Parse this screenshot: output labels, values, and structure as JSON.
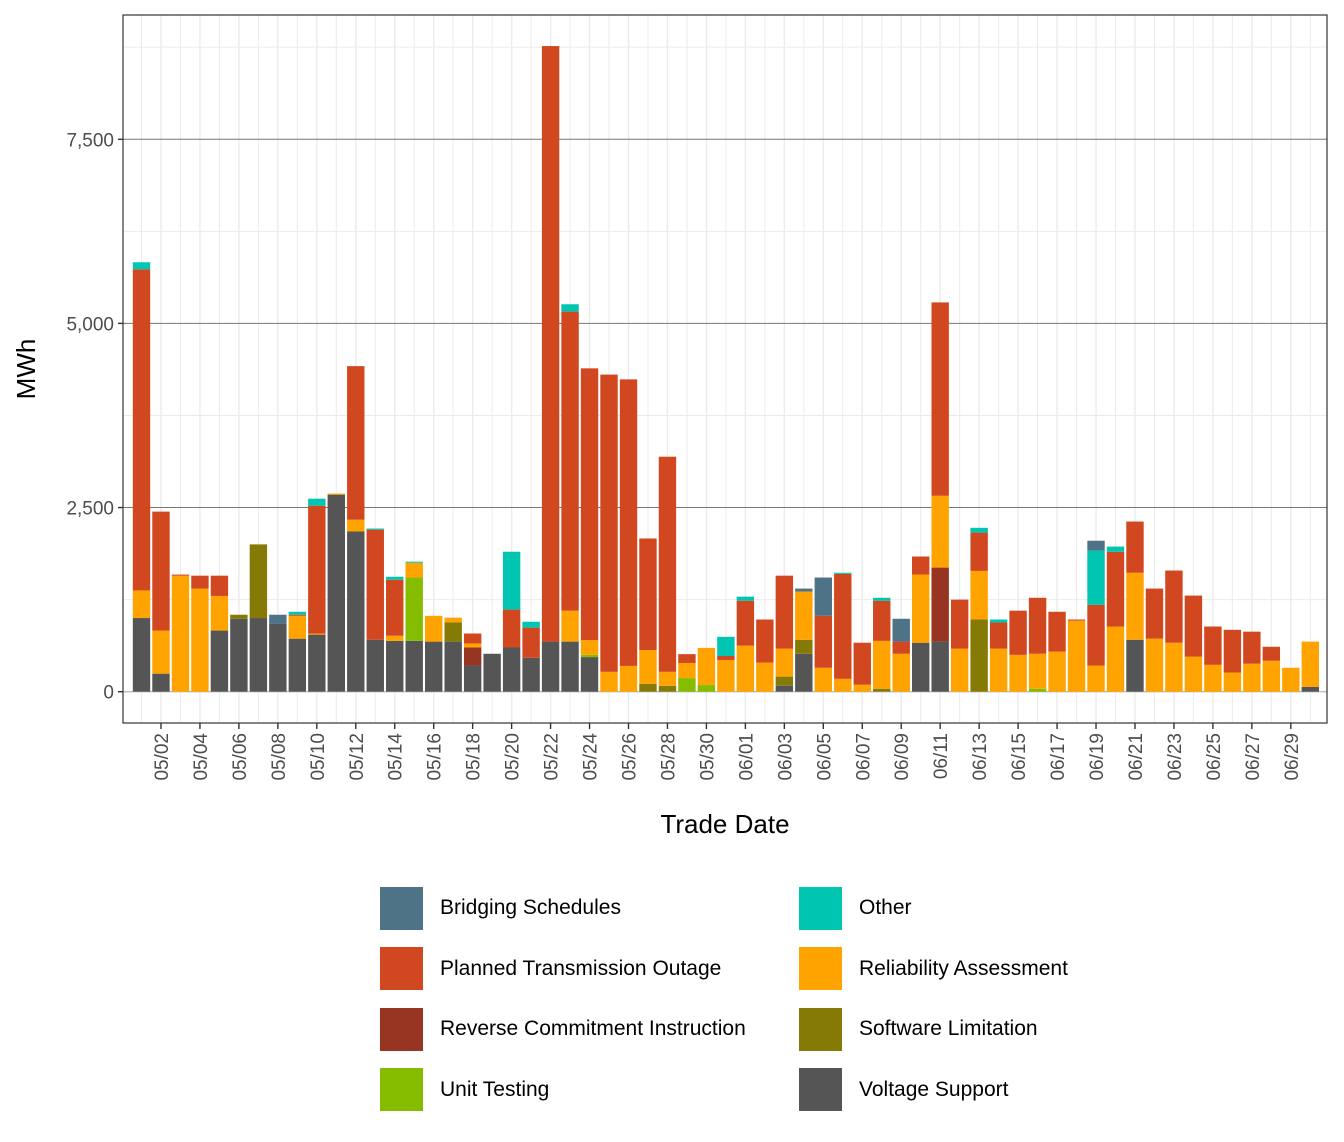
{
  "chart_data": {
    "type": "bar",
    "stacked": true,
    "title": "",
    "xlabel": "Trade Date",
    "ylabel": "MWh",
    "ylim": [
      0,
      9250
    ],
    "y_ticks": [
      0,
      2500,
      5000,
      7500
    ],
    "y_tick_labels": [
      "0",
      "2,500",
      "5,000",
      "7,500"
    ],
    "x_tick_labels": [
      "05/02",
      "05/04",
      "05/06",
      "05/08",
      "05/10",
      "05/12",
      "05/14",
      "05/16",
      "05/18",
      "05/20",
      "05/22",
      "05/24",
      "05/26",
      "05/28",
      "05/30",
      "06/01",
      "06/03",
      "06/05",
      "06/07",
      "06/09",
      "06/11",
      "06/13",
      "06/15",
      "06/17",
      "06/19",
      "06/21",
      "06/23",
      "06/25",
      "06/27",
      "06/29"
    ],
    "grid": true,
    "legend_position": "bottom",
    "stack_order": [
      "Voltage Support",
      "Unit Testing",
      "Software Limitation",
      "Reverse Commitment Instruction",
      "Reliability Assessment",
      "Planned Transmission Outage",
      "Other",
      "Bridging Schedules"
    ],
    "legend": [
      {
        "name": "Bridging Schedules",
        "color": "#4E7387"
      },
      {
        "name": "Other",
        "color": "#00C5B0"
      },
      {
        "name": "Planned Transmission Outage",
        "color": "#D04720"
      },
      {
        "name": "Reliability Assessment",
        "color": "#FFA300"
      },
      {
        "name": "Reverse Commitment Instruction",
        "color": "#983522"
      },
      {
        "name": "Software Limitation",
        "color": "#857A06"
      },
      {
        "name": "Unit Testing",
        "color": "#85BC00"
      },
      {
        "name": "Voltage Support",
        "color": "#555555"
      }
    ],
    "categories": [
      "05/01",
      "05/02",
      "05/03",
      "05/04",
      "05/05",
      "05/06",
      "05/07",
      "05/08",
      "05/09",
      "05/10",
      "05/11",
      "05/12",
      "05/13",
      "05/14",
      "05/15",
      "05/16",
      "05/17",
      "05/18",
      "05/19",
      "05/20",
      "05/21",
      "05/22",
      "05/23",
      "05/24",
      "05/25",
      "05/26",
      "05/27",
      "05/28",
      "05/29",
      "05/30",
      "05/31",
      "06/01",
      "06/02",
      "06/03",
      "06/04",
      "06/05",
      "06/06",
      "06/07",
      "06/08",
      "06/09",
      "06/10",
      "06/11",
      "06/12",
      "06/13",
      "06/14",
      "06/15",
      "06/16",
      "06/17",
      "06/18",
      "06/19",
      "06/20",
      "06/21",
      "06/22",
      "06/23",
      "06/24",
      "06/25",
      "06/26",
      "06/27",
      "06/28",
      "06/29",
      "06/30"
    ],
    "series": [
      {
        "name": "Voltage Support",
        "values": [
          1000,
          245,
          0,
          0,
          830,
          990,
          1000,
          920,
          720,
          775,
          2675,
          2175,
          705,
          690,
          690,
          680,
          680,
          355,
          515,
          600,
          460,
          680,
          680,
          470,
          0,
          0,
          0,
          0,
          0,
          0,
          0,
          0,
          0,
          80,
          515,
          0,
          0,
          0,
          0,
          0,
          665,
          680,
          0,
          0,
          0,
          0,
          0,
          0,
          0,
          0,
          0,
          705,
          0,
          0,
          0,
          0,
          0,
          0,
          0,
          0,
          65
        ]
      },
      {
        "name": "Unit Testing",
        "values": [
          0,
          0,
          0,
          0,
          0,
          0,
          0,
          0,
          0,
          0,
          0,
          0,
          0,
          0,
          860,
          0,
          0,
          0,
          0,
          0,
          0,
          0,
          0,
          30,
          0,
          0,
          0,
          0,
          185,
          90,
          0,
          0,
          0,
          0,
          0,
          0,
          0,
          0,
          0,
          0,
          0,
          0,
          0,
          0,
          0,
          0,
          40,
          0,
          0,
          0,
          0,
          0,
          0,
          0,
          0,
          0,
          0,
          0,
          0,
          0,
          0
        ]
      },
      {
        "name": "Software Limitation",
        "values": [
          0,
          0,
          0,
          0,
          0,
          55,
          1000,
          0,
          0,
          0,
          0,
          0,
          0,
          0,
          0,
          0,
          260,
          0,
          0,
          0,
          0,
          0,
          0,
          0,
          0,
          0,
          105,
          80,
          0,
          0,
          0,
          0,
          0,
          125,
          190,
          0,
          0,
          0,
          40,
          0,
          0,
          0,
          0,
          980,
          0,
          0,
          0,
          0,
          0,
          0,
          0,
          0,
          0,
          0,
          0,
          0,
          0,
          0,
          0,
          0,
          0
        ]
      },
      {
        "name": "Reverse Commitment Instruction",
        "values": [
          0,
          0,
          0,
          0,
          0,
          0,
          0,
          0,
          0,
          0,
          0,
          0,
          0,
          0,
          0,
          0,
          0,
          245,
          0,
          0,
          0,
          0,
          0,
          0,
          0,
          0,
          0,
          0,
          0,
          0,
          0,
          0,
          0,
          0,
          0,
          0,
          0,
          0,
          0,
          0,
          0,
          1005,
          0,
          0,
          0,
          0,
          0,
          0,
          0,
          0,
          0,
          0,
          0,
          0,
          0,
          0,
          0,
          0,
          0,
          0,
          0
        ]
      },
      {
        "name": "Reliability Assessment",
        "values": [
          375,
          585,
          1575,
          1400,
          470,
          0,
          0,
          0,
          310,
          15,
          15,
          160,
          0,
          70,
          200,
          350,
          65,
          55,
          0,
          0,
          0,
          0,
          420,
          200,
          270,
          350,
          460,
          190,
          205,
          505,
          430,
          625,
          395,
          380,
          655,
          325,
          175,
          95,
          650,
          515,
          925,
          975,
          585,
          660,
          585,
          500,
          475,
          545,
          965,
          355,
          885,
          910,
          720,
          665,
          475,
          365,
          260,
          380,
          420,
          325,
          615
        ]
      },
      {
        "name": "Planned Transmission Outage",
        "values": [
          4360,
          1615,
          15,
          175,
          275,
          0,
          0,
          0,
          15,
          1735,
          0,
          2085,
          1495,
          760,
          0,
          0,
          0,
          135,
          0,
          515,
          410,
          8085,
          4060,
          3690,
          4035,
          3890,
          1515,
          2920,
          120,
          0,
          55,
          610,
          585,
          990,
          0,
          705,
          1425,
          570,
          545,
          165,
          245,
          2625,
          665,
          520,
          355,
          600,
          760,
          540,
          15,
          825,
          1015,
          695,
          680,
          980,
          830,
          520,
          580,
          435,
          190,
          0,
          0
        ]
      },
      {
        "name": "Other",
        "values": [
          95,
          0,
          0,
          0,
          0,
          0,
          0,
          0,
          40,
          95,
          0,
          0,
          15,
          40,
          15,
          0,
          0,
          0,
          0,
          785,
          80,
          0,
          100,
          0,
          0,
          0,
          0,
          0,
          0,
          0,
          260,
          55,
          0,
          0,
          0,
          0,
          15,
          0,
          40,
          0,
          0,
          0,
          0,
          65,
          40,
          0,
          0,
          0,
          0,
          735,
          70,
          0,
          0,
          0,
          0,
          0,
          0,
          0,
          0,
          0,
          0
        ]
      },
      {
        "name": "Bridging Schedules",
        "values": [
          0,
          0,
          0,
          0,
          0,
          0,
          0,
          125,
          0,
          0,
          0,
          0,
          0,
          0,
          0,
          0,
          0,
          0,
          0,
          0,
          0,
          0,
          0,
          0,
          0,
          0,
          0,
          0,
          0,
          0,
          0,
          0,
          0,
          0,
          40,
          520,
          0,
          0,
          0,
          310,
          0,
          0,
          0,
          0,
          0,
          0,
          0,
          0,
          0,
          135,
          0,
          0,
          0,
          0,
          0,
          0,
          0,
          0,
          0,
          0,
          0
        ]
      }
    ]
  }
}
